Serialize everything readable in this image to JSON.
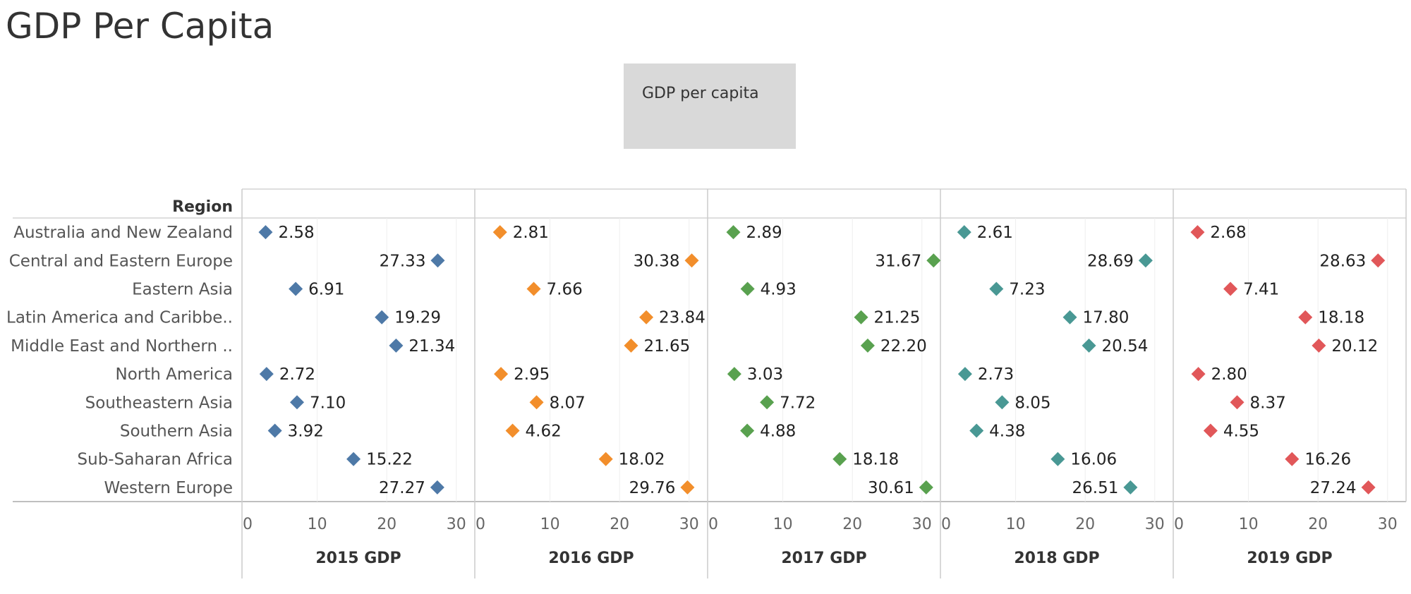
{
  "title": "GDP Per Capita",
  "legend": {
    "label": "GDP per capita"
  },
  "colors": [
    "#4e79a7",
    "#f28e2b",
    "#59a14f",
    "#499894",
    "#e15759"
  ],
  "chart_data": {
    "type": "scatter",
    "row_header": "Region",
    "categories": [
      "Australia and New Zealand",
      "Central and Eastern Europe",
      "Eastern Asia",
      "Latin America and Caribbe..",
      "Middle East and Northern ..",
      "North America",
      "Southeastern Asia",
      "Southern Asia",
      "Sub-Saharan Africa",
      "Western Europe"
    ],
    "xlim": [
      0,
      30
    ],
    "ticks": [
      0,
      10,
      20,
      30
    ],
    "tick_labels": [
      "0",
      "10",
      "20",
      "30"
    ],
    "series": [
      {
        "name": "2015 GDP",
        "values": [
          2.58,
          27.33,
          6.91,
          19.29,
          21.34,
          2.72,
          7.1,
          3.92,
          15.22,
          27.27
        ],
        "labels": [
          "2.58",
          "27.33",
          "6.91",
          "19.29",
          "21.34",
          "2.72",
          "7.10",
          "3.92",
          "15.22",
          "27.27"
        ]
      },
      {
        "name": "2016 GDP",
        "values": [
          2.81,
          30.38,
          7.66,
          23.84,
          21.65,
          2.95,
          8.07,
          4.62,
          18.02,
          29.76
        ],
        "labels": [
          "2.81",
          "30.38",
          "7.66",
          "23.84",
          "21.65",
          "2.95",
          "8.07",
          "4.62",
          "18.02",
          "29.76"
        ]
      },
      {
        "name": "2017 GDP",
        "values": [
          2.89,
          31.67,
          4.93,
          21.25,
          22.2,
          3.03,
          7.72,
          4.88,
          18.18,
          30.61
        ],
        "labels": [
          "2.89",
          "31.67",
          "4.93",
          "21.25",
          "22.20",
          "3.03",
          "7.72",
          "4.88",
          "18.18",
          "30.61"
        ]
      },
      {
        "name": "2018 GDP",
        "values": [
          2.61,
          28.69,
          7.23,
          17.8,
          20.54,
          2.73,
          8.05,
          4.38,
          16.06,
          26.51
        ],
        "labels": [
          "2.61",
          "28.69",
          "7.23",
          "17.80",
          "20.54",
          "2.73",
          "8.05",
          "4.38",
          "16.06",
          "26.51"
        ]
      },
      {
        "name": "2019 GDP",
        "values": [
          2.68,
          28.63,
          7.41,
          18.18,
          20.12,
          2.8,
          8.37,
          4.55,
          16.26,
          27.24
        ],
        "labels": [
          "2.68",
          "28.63",
          "7.41",
          "18.18",
          "20.12",
          "2.80",
          "8.37",
          "4.55",
          "16.26",
          "27.24"
        ]
      }
    ],
    "grid": true,
    "legend_position": "top-center"
  }
}
